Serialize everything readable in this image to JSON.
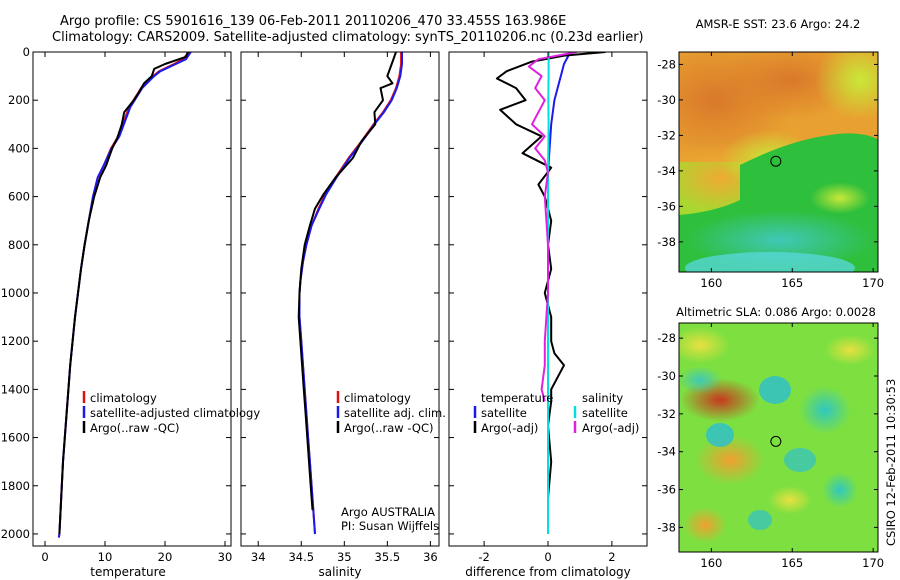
{
  "title_line1": "Argo profile: CS 5901616_139 06-Feb-2011 20110206_470 33.455S 163.986E",
  "title_line2": "Climatology: CARS2009. Satellite-adjusted climatology: synTS_20110206.nc (0.23d earlier)",
  "side_stamp": "CSIRO 12-Feb-2011 10:30:53",
  "colors": {
    "red": "#e01010",
    "blue": "#1a1aee",
    "black": "#000000",
    "cyan": "#00e0e0",
    "magenta": "#e020e0"
  },
  "chart_data": [
    {
      "id": "temperature",
      "type": "line",
      "xlabel": "temperature",
      "xlim": [
        -2,
        31
      ],
      "ylim": [
        0,
        2050
      ],
      "xticks": [
        0,
        10,
        20,
        30
      ],
      "yticks": [
        0,
        200,
        400,
        600,
        800,
        1000,
        1200,
        1400,
        1600,
        1800,
        2000
      ],
      "legend": [
        "climatology",
        "satellite-adjusted climatology",
        "Argo(..raw -QC)"
      ],
      "series": [
        {
          "name": "climatology",
          "color": "red",
          "x": [
            24,
            23,
            21.5,
            19,
            18,
            16,
            14,
            12.2,
            11,
            9.8,
            8.8,
            8.0,
            7.3,
            6.6,
            6.0,
            5.5,
            5.0,
            4.6,
            4.2,
            3.9,
            3.6,
            3.3,
            3.0,
            2.8,
            2.6,
            2.4,
            2.3
          ],
          "y": [
            0,
            30,
            50,
            80,
            100,
            150,
            230,
            350,
            400,
            470,
            520,
            600,
            700,
            800,
            900,
            1000,
            1100,
            1200,
            1300,
            1400,
            1500,
            1600,
            1700,
            1800,
            1900,
            2000,
            2015
          ]
        },
        {
          "name": "satellite-adjusted climatology",
          "color": "blue",
          "x": [
            24.3,
            23.5,
            21.8,
            19.2,
            18.2,
            16.2,
            14.2,
            12.4,
            11.1,
            9.8,
            8.8,
            8.0,
            7.3,
            6.6,
            6.0,
            5.5,
            5.0,
            4.6,
            4.2,
            3.9,
            3.6,
            3.3,
            3.0,
            2.8,
            2.6,
            2.4,
            2.3
          ],
          "y": [
            0,
            30,
            50,
            80,
            100,
            150,
            230,
            350,
            400,
            470,
            520,
            600,
            700,
            800,
            900,
            1000,
            1100,
            1200,
            1300,
            1400,
            1500,
            1600,
            1700,
            1800,
            1900,
            2000,
            2015
          ]
        },
        {
          "name": "Argo(..raw -QC)",
          "color": "black",
          "x": [
            23.8,
            23.5,
            20,
            18.2,
            17.8,
            16.5,
            15.6,
            14.8,
            13.2,
            12.8,
            12.0,
            11.2,
            10.2,
            9.2,
            8.2,
            7.3,
            6.6,
            6.0,
            5.5,
            5.0,
            4.6,
            4.2,
            3.9,
            3.6,
            3.3,
            3.0,
            2.8,
            2.6,
            2.4
          ],
          "y": [
            0,
            20,
            50,
            70,
            100,
            130,
            170,
            200,
            250,
            300,
            360,
            400,
            470,
            520,
            600,
            700,
            800,
            900,
            1000,
            1100,
            1200,
            1300,
            1400,
            1500,
            1600,
            1700,
            1800,
            1900,
            2000
          ]
        }
      ]
    },
    {
      "id": "salinity",
      "type": "line",
      "xlabel": "salinity",
      "xlim": [
        33.8,
        36.1
      ],
      "ylim": [
        0,
        2050
      ],
      "xticks": [
        34,
        34.5,
        35,
        35.5,
        36
      ],
      "yticks": [
        0,
        200,
        400,
        600,
        800,
        1000,
        1200,
        1400,
        1600,
        1800,
        2000
      ],
      "legend": [
        "climatology",
        "satellite adj. clim.",
        "Argo(..raw -QC)"
      ],
      "annotation": [
        "Argo AUSTRALIA",
        "PI: Susan Wijffels"
      ],
      "series": [
        {
          "name": "climatology",
          "color": "red",
          "x": [
            35.66,
            35.66,
            35.64,
            35.6,
            35.54,
            35.45,
            35.34,
            35.2,
            35.05,
            34.9,
            34.78,
            34.7,
            34.62,
            34.56,
            34.52,
            34.49,
            34.48,
            34.48,
            34.5,
            34.52,
            34.54,
            34.56,
            34.58,
            34.6,
            34.62,
            34.64,
            34.66
          ],
          "y": [
            0,
            50,
            100,
            150,
            200,
            250,
            300,
            370,
            440,
            520,
            590,
            650,
            720,
            800,
            870,
            950,
            1000,
            1100,
            1200,
            1300,
            1400,
            1500,
            1600,
            1700,
            1800,
            1900,
            2000
          ]
        },
        {
          "name": "satellite adj. clim.",
          "color": "blue",
          "x": [
            35.67,
            35.67,
            35.65,
            35.61,
            35.55,
            35.46,
            35.35,
            35.21,
            35.06,
            34.91,
            34.79,
            34.71,
            34.62,
            34.56,
            34.52,
            34.49,
            34.48,
            34.48,
            34.5,
            34.52,
            34.54,
            34.56,
            34.58,
            34.6,
            34.62,
            34.64,
            34.66
          ],
          "y": [
            0,
            50,
            100,
            150,
            200,
            250,
            300,
            370,
            440,
            520,
            590,
            650,
            720,
            800,
            870,
            950,
            1000,
            1100,
            1200,
            1300,
            1400,
            1500,
            1600,
            1700,
            1800,
            1900,
            2000
          ]
        },
        {
          "name": "Argo(..raw -QC)",
          "color": "black",
          "x": [
            35.6,
            35.55,
            35.5,
            35.56,
            35.42,
            35.45,
            35.35,
            35.36,
            35.2,
            35.1,
            34.9,
            34.76,
            34.66,
            34.6,
            34.54,
            34.5,
            34.48,
            34.47,
            34.49,
            34.51,
            34.53,
            34.55,
            34.57,
            34.59,
            34.61,
            34.63
          ],
          "y": [
            0,
            50,
            100,
            130,
            150,
            200,
            250,
            300,
            370,
            440,
            520,
            590,
            650,
            720,
            800,
            900,
            1000,
            1100,
            1200,
            1300,
            1400,
            1500,
            1600,
            1700,
            1800,
            1900
          ]
        }
      ]
    },
    {
      "id": "difference",
      "type": "line",
      "xlabel": "difference from climatology",
      "xlim": [
        -3.1,
        3.1
      ],
      "ylim": [
        0,
        2050
      ],
      "xticks": [
        -2,
        0,
        2
      ],
      "yticks": [
        0,
        200,
        400,
        600,
        800,
        1000,
        1200,
        1400,
        1600,
        1800,
        2000
      ],
      "legend_left_title": "temperature",
      "legend_right_title": "salinity",
      "legend_left": [
        "satellite",
        "Argo(-adj)"
      ],
      "legend_right": [
        "satellite",
        "Argo(-adj)"
      ],
      "series": [
        {
          "name": "temperature satellite",
          "color": "blue",
          "x": [
            0.7,
            0.5,
            0.4,
            0.3,
            0.2,
            0.1,
            0.05,
            0.0,
            0.0,
            0.0,
            0.0,
            0.0,
            0.0
          ],
          "y": [
            0,
            50,
            100,
            150,
            200,
            300,
            400,
            500,
            800,
            1100,
            1400,
            1700,
            2000
          ]
        },
        {
          "name": "temperature Argo(-adj)",
          "color": "black",
          "x": [
            1.8,
            0.5,
            -0.5,
            -1.3,
            -1.6,
            -1.0,
            -0.7,
            -1.5,
            -1.0,
            -0.2,
            -0.8,
            0.1,
            -0.3,
            -0.1,
            0.1,
            0.0,
            0.1,
            -0.1,
            0.1,
            0.1,
            0.2,
            0.5,
            0.3,
            0.1,
            0.1,
            0.0,
            0.1,
            0.0,
            0.0
          ],
          "y": [
            0,
            15,
            40,
            80,
            110,
            150,
            200,
            240,
            300,
            350,
            420,
            480,
            550,
            600,
            700,
            800,
            900,
            1000,
            1100,
            1200,
            1250,
            1300,
            1350,
            1400,
            1450,
            1550,
            1700,
            1850,
            2000
          ]
        },
        {
          "name": "salinity satellite",
          "color": "cyan",
          "x": [
            0.02,
            0.02,
            0.01,
            0.02,
            0.01,
            0.0,
            0.0,
            0.0,
            0.0,
            0.0,
            0.0,
            0.0
          ],
          "y": [
            0,
            100,
            200,
            300,
            400,
            500,
            700,
            1000,
            1300,
            1600,
            1800,
            2000
          ]
        },
        {
          "name": "salinity Argo(-adj)",
          "color": "magenta",
          "x": [
            0.9,
            -0.3,
            -0.6,
            -0.2,
            -0.4,
            -0.1,
            -0.3,
            -0.5,
            -0.1,
            -0.4,
            -0.1,
            0.0,
            -0.1,
            0.0,
            0.0,
            -0.1,
            -0.1,
            -0.2,
            -0.1
          ],
          "y": [
            0,
            30,
            60,
            100,
            150,
            200,
            250,
            300,
            350,
            400,
            450,
            500,
            600,
            800,
            1000,
            1200,
            1300,
            1400,
            1450
          ]
        }
      ]
    },
    {
      "id": "sst_map",
      "type": "heatmap",
      "title": "AMSR-E SST: 23.6  Argo: 24.2",
      "xlim": [
        158,
        170.3
      ],
      "ylim": [
        -39.7,
        -27.3
      ],
      "xticks": [
        160,
        165,
        170
      ],
      "yticks": [
        -28,
        -30,
        -32,
        -34,
        -36,
        -38
      ],
      "marker": {
        "lon": 163.986,
        "lat": -33.455
      }
    },
    {
      "id": "sla_map",
      "type": "heatmap",
      "title": "Altimetric SLA: 0.086  Argo: 0.0028",
      "xlim": [
        158,
        170.3
      ],
      "ylim": [
        -39.3,
        -27.2
      ],
      "xticks": [
        160,
        165,
        170
      ],
      "yticks": [
        -28,
        -30,
        -32,
        -34,
        -36,
        -38
      ],
      "marker": {
        "lon": 163.986,
        "lat": -33.455
      }
    }
  ]
}
